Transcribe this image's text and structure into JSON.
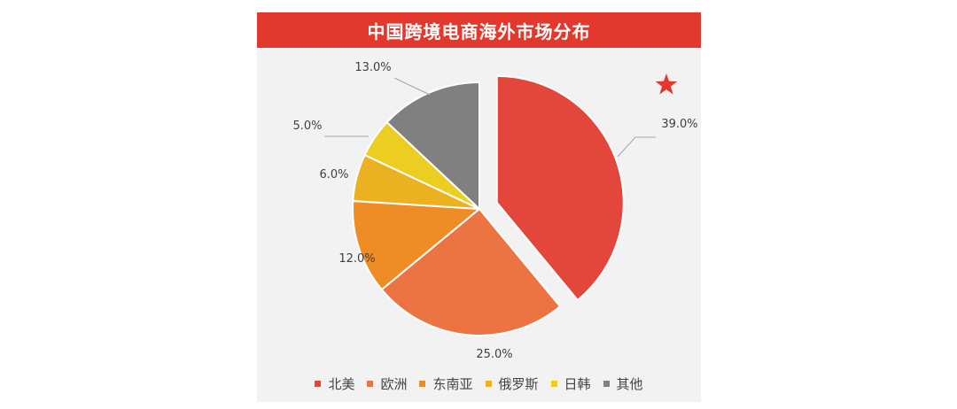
{
  "chart_data": {
    "type": "pie",
    "title": "中国跨境电商海外市场分布",
    "slices": [
      {
        "name": "北美",
        "value": 39.0,
        "label": "39.0%",
        "color": "#e3463b",
        "exploded": true
      },
      {
        "name": "欧洲",
        "value": 25.0,
        "label": "25.0%",
        "color": "#ec7443"
      },
      {
        "name": "东南亚",
        "value": 12.0,
        "label": "12.0%",
        "color": "#ee8d25"
      },
      {
        "name": "俄罗斯",
        "value": 6.0,
        "label": "6.0%",
        "color": "#ebb121"
      },
      {
        "name": "日韩",
        "value": 5.0,
        "label": "5.0%",
        "color": "#ecce22"
      },
      {
        "name": "其他",
        "value": 13.0,
        "label": "13.0%",
        "color": "#808080"
      }
    ],
    "legend_position": "bottom",
    "decoration": {
      "star_icon_color": "#e2382d"
    }
  }
}
